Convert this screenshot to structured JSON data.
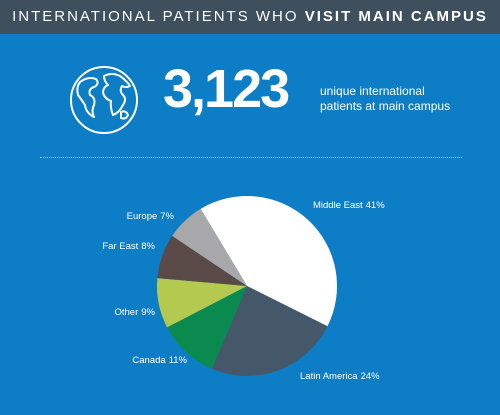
{
  "header": {
    "title_light": "INTERNATIONAL PATIENTS WHO",
    "title_bold": "VISIT MAIN CAMPUS"
  },
  "stat": {
    "number": "3,123",
    "caption_lines": [
      "unique international",
      "patients at main campus"
    ]
  },
  "chart_data": {
    "type": "pie",
    "categories": [
      "Middle East",
      "Latin America",
      "Canada",
      "Other",
      "Far East",
      "Europe"
    ],
    "values": [
      41,
      24,
      11,
      9,
      8,
      7
    ],
    "value_labels": [
      "41%",
      "24%",
      "11%",
      "9%",
      "8%",
      "7%"
    ],
    "colors": [
      "#ffffff",
      "#44586a",
      "#0b8a4f",
      "#b4c94f",
      "#594a48",
      "#a8a8ab"
    ]
  }
}
